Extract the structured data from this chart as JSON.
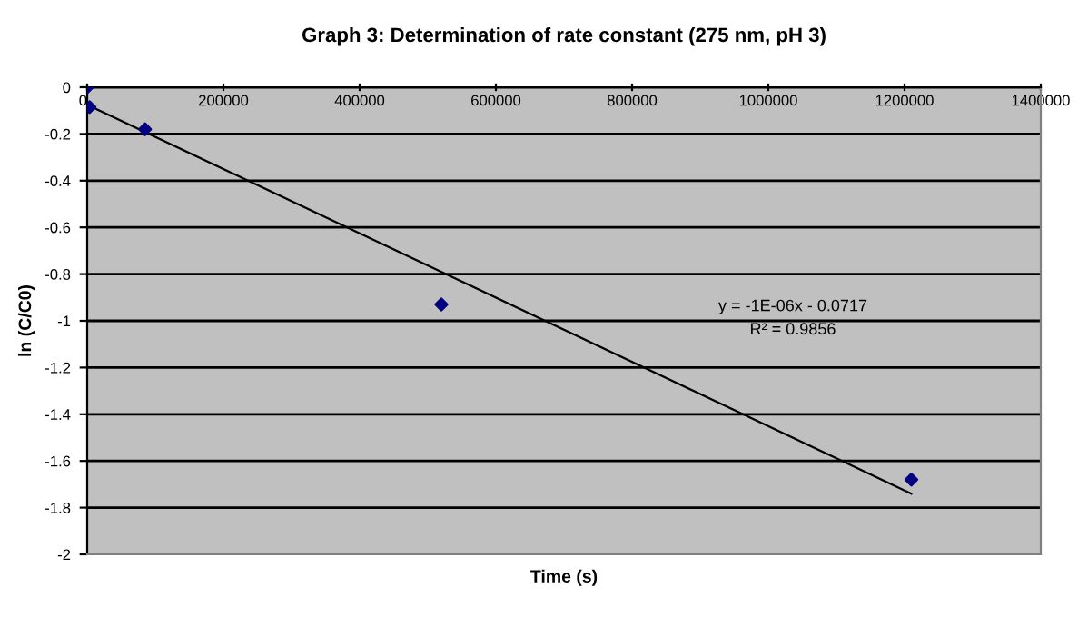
{
  "chart_data": {
    "type": "scatter",
    "title": "Graph 3: Determination of rate constant (275 nm, pH 3)",
    "xlabel": "Time (s)",
    "ylabel": "ln (C/C0)",
    "series": [
      {
        "color": "#000080",
        "marker": "diamond",
        "x": [
          0,
          3500,
          85000,
          520000,
          1210000
        ],
        "values": [
          0,
          -0.085,
          -0.18,
          -0.93,
          -1.68
        ]
      },
      {
        "type": "line",
        "color": "#000000",
        "marker": "none",
        "line_style": "solid",
        "x": [
          0,
          1210000
        ],
        "values": [
          -0.075,
          -1.74
        ]
      }
    ],
    "annotations": [
      "y = -1E-06x - 0.0717",
      "R² = 0.9856"
    ],
    "xlim": [
      0,
      1400000
    ],
    "xticks": [
      0,
      200000,
      400000,
      600000,
      800000,
      1000000,
      1200000,
      1400000
    ],
    "ylim": [
      -2,
      0
    ],
    "yticks": [
      -2,
      -1.8,
      -1.6,
      -1.4,
      -1.2,
      -1,
      -0.8,
      -0.6,
      -0.4,
      -0.2,
      0
    ],
    "grid": "y",
    "legend": false
  }
}
